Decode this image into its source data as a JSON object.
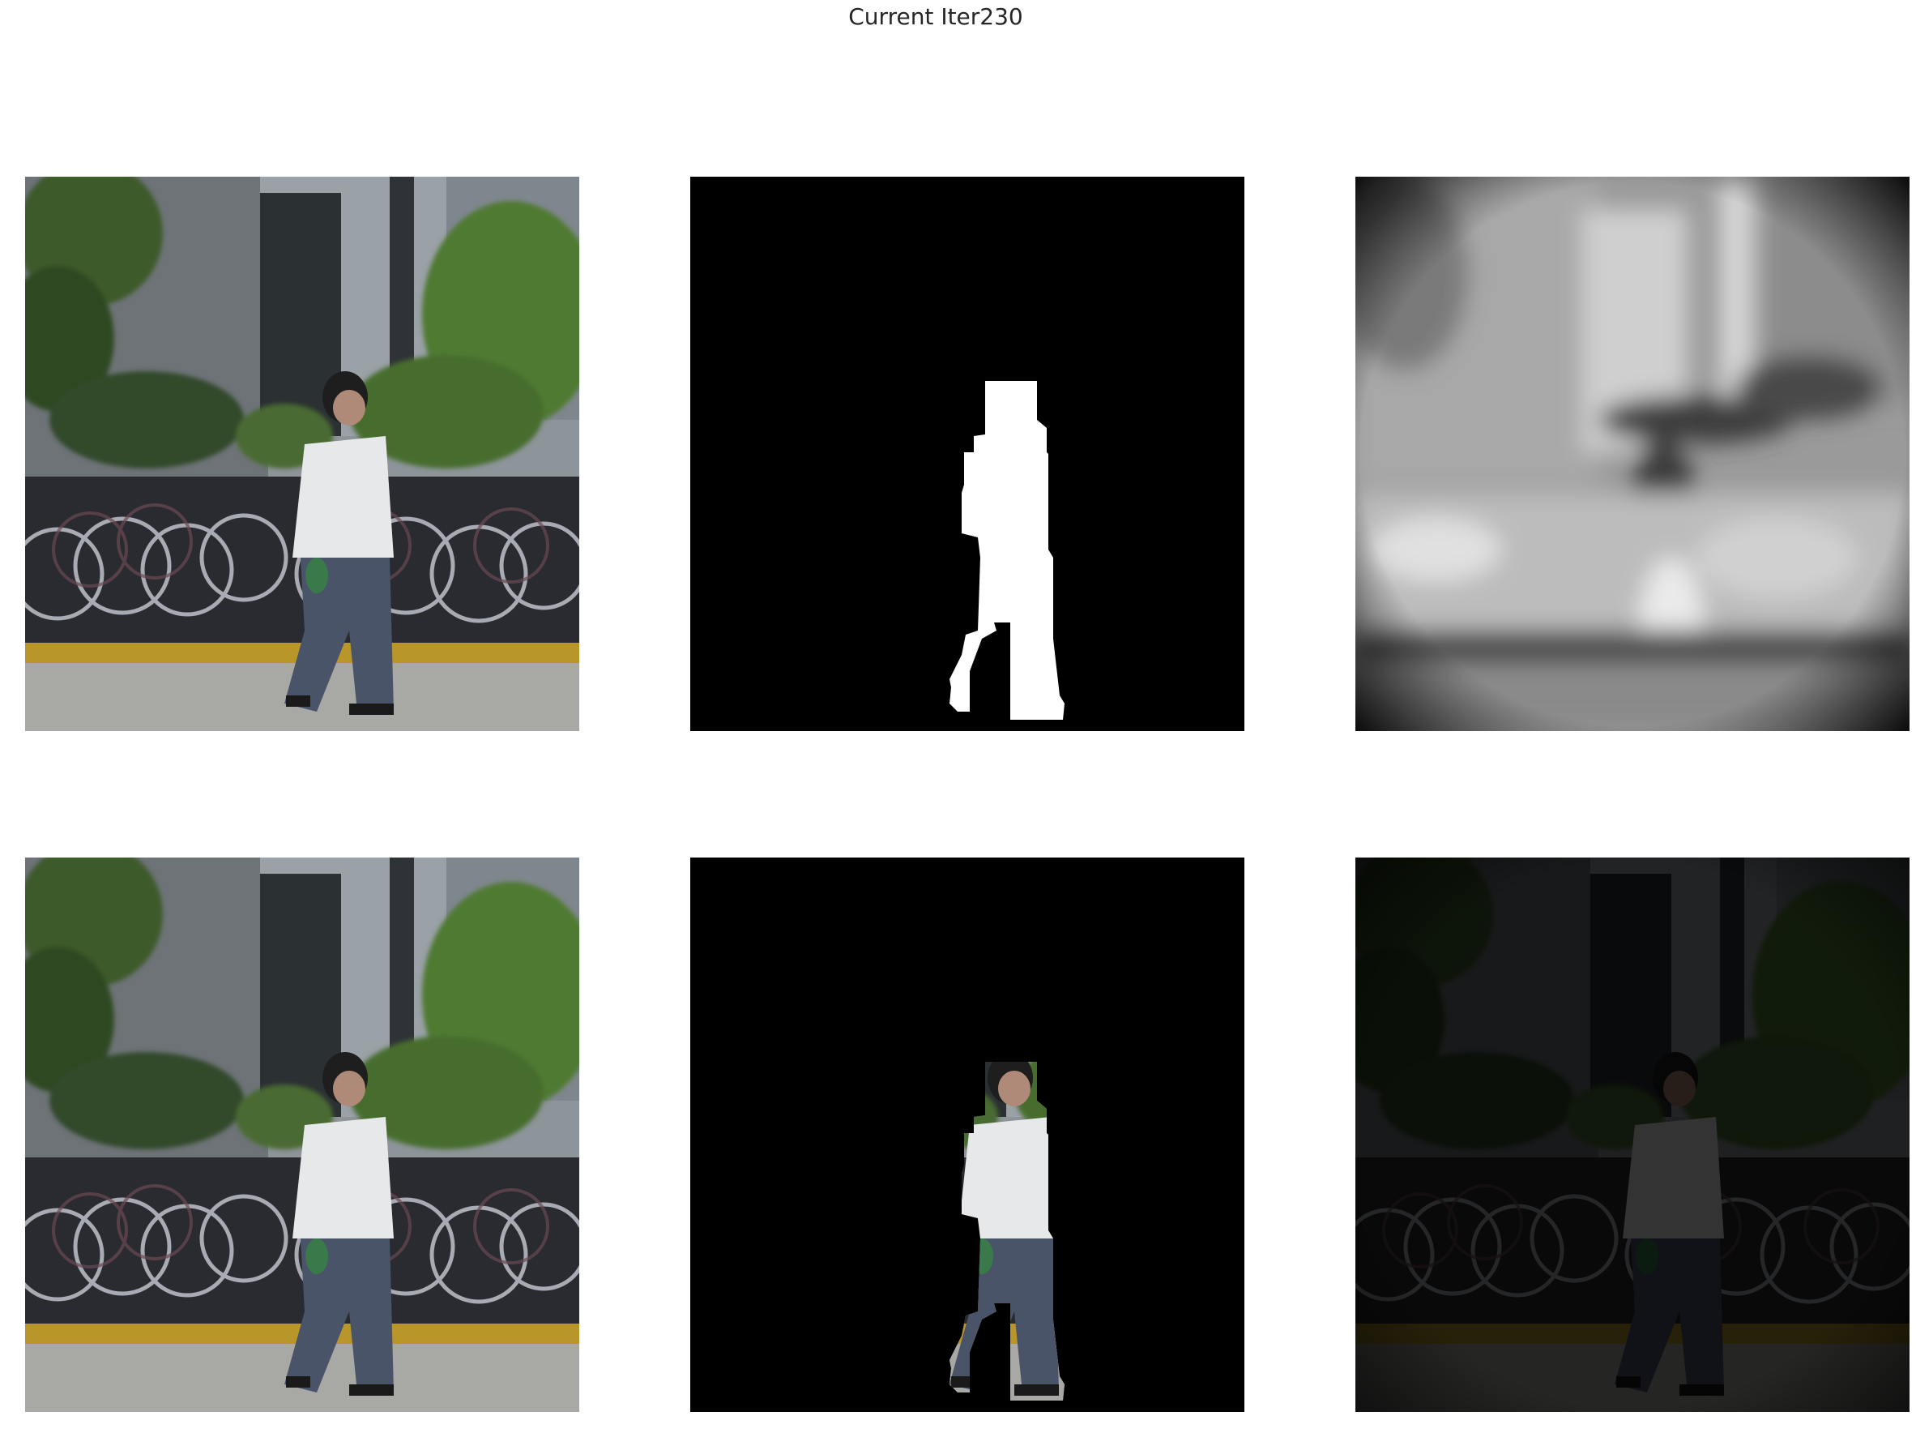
{
  "figure": {
    "title": "Current Iter230"
  },
  "panels": [
    {
      "row": 1,
      "col": 1,
      "content": "input-image"
    },
    {
      "row": 1,
      "col": 2,
      "content": "predicted-mask"
    },
    {
      "row": 1,
      "col": 3,
      "content": "grayscale-map"
    },
    {
      "row": 2,
      "col": 1,
      "content": "input-image"
    },
    {
      "row": 2,
      "col": 2,
      "content": "masked-foreground"
    },
    {
      "row": 2,
      "col": 3,
      "content": "dimmed-background"
    }
  ],
  "colors": {
    "mask_foreground": "#ffffff",
    "mask_background": "#000000",
    "wall": "#8d949a",
    "foliage": "#3e5a2a",
    "curb": "#b8962a",
    "ground": "#a8a8a4",
    "shirt": "#e6e8ea",
    "pants": "#4a5468",
    "hair": "#1e1e1e"
  }
}
